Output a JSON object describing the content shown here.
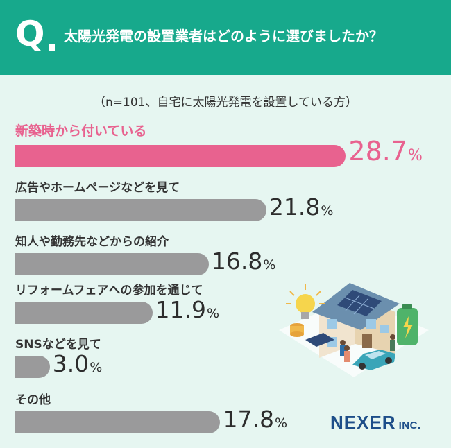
{
  "header": {
    "q_mark": "Q",
    "question": "太陽光発電の設置業者はどのように選びましたか？"
  },
  "subtitle": "（n=101、自宅に太陽光発電を設置している方）",
  "chart_data": {
    "type": "bar",
    "orientation": "horizontal",
    "title": "太陽光発電の設置業者はどのように選びましたか？",
    "subtitle": "（n=101、自宅に太陽光発電を設置している方）",
    "categories": [
      "新築時から付いている",
      "広告やホームページなどを見て",
      "知人や勤務先などからの紹介",
      "リフォームフェアへの参加を通じて",
      "SNSなどを見て",
      "その他"
    ],
    "values": [
      28.7,
      21.8,
      16.8,
      11.9,
      3.0,
      17.8
    ],
    "value_labels": [
      "28.7",
      "21.8",
      "16.8",
      "11.9",
      "3.0",
      "17.8"
    ],
    "unit": "%",
    "highlight_index": 0,
    "colors": {
      "highlight": "#e8628f",
      "default": "#9a9a9b",
      "header": "#17a98c",
      "background": "#e6f6f1"
    },
    "grid": false,
    "legend": "none"
  },
  "logo": {
    "name": "NEXER",
    "suffix": "INC."
  },
  "icons": [
    "solar-house-illustration"
  ]
}
